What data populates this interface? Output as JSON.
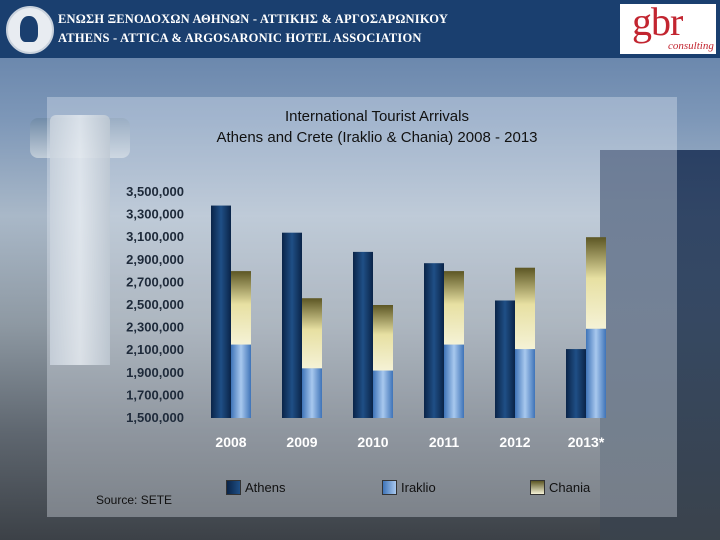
{
  "header": {
    "association_greek": "ΕΝΩΣΗ ΞΕΝΟΔΟΧΩΝ ΑΘΗΝΩΝ - ΑΤΤΙΚΗΣ & ΑΡΓΟΣΑΡΩΝΙΚΟΥ",
    "association_english": "ATHENS - ATTICA & ARGOSARONIC HOTEL ASSOCIATION",
    "brand_logo": "gbr",
    "brand_sub": "consulting"
  },
  "chart_data": {
    "type": "bar",
    "title": "International Tourist Arrivals",
    "subtitle": "Athens and Crete (Iraklio & Chania) 2008 - 2013",
    "categories": [
      "2008",
      "2009",
      "2010",
      "2011",
      "2012",
      "2013*"
    ],
    "series": [
      {
        "name": "Athens",
        "values": [
          3380000,
          3140000,
          2970000,
          2870000,
          2540000,
          2110000
        ],
        "color": "#0d2f5c"
      },
      {
        "name": "Iraklio",
        "values": [
          2150000,
          1940000,
          1920000,
          2150000,
          2110000,
          2290000
        ],
        "color": "#5b8fcf"
      },
      {
        "name": "Chania",
        "values": [
          650000,
          620000,
          580000,
          650000,
          720000,
          810000
        ],
        "color": "#d8c470"
      }
    ],
    "stacked_groups": [
      [
        "Athens"
      ],
      [
        "Iraklio",
        "Chania"
      ]
    ],
    "yticks": [
      "3,500,000",
      "3,300,000",
      "3,100,000",
      "2,900,000",
      "2,700,000",
      "2,500,000",
      "2,300,000",
      "2,100,000",
      "1,900,000",
      "1,700,000",
      "1,500,000"
    ],
    "ylim": [
      1500000,
      3500000
    ],
    "legend": [
      "Athens",
      "Iraklio",
      "Chania"
    ],
    "legend_position": "bottom",
    "source": "Source: SETE"
  }
}
